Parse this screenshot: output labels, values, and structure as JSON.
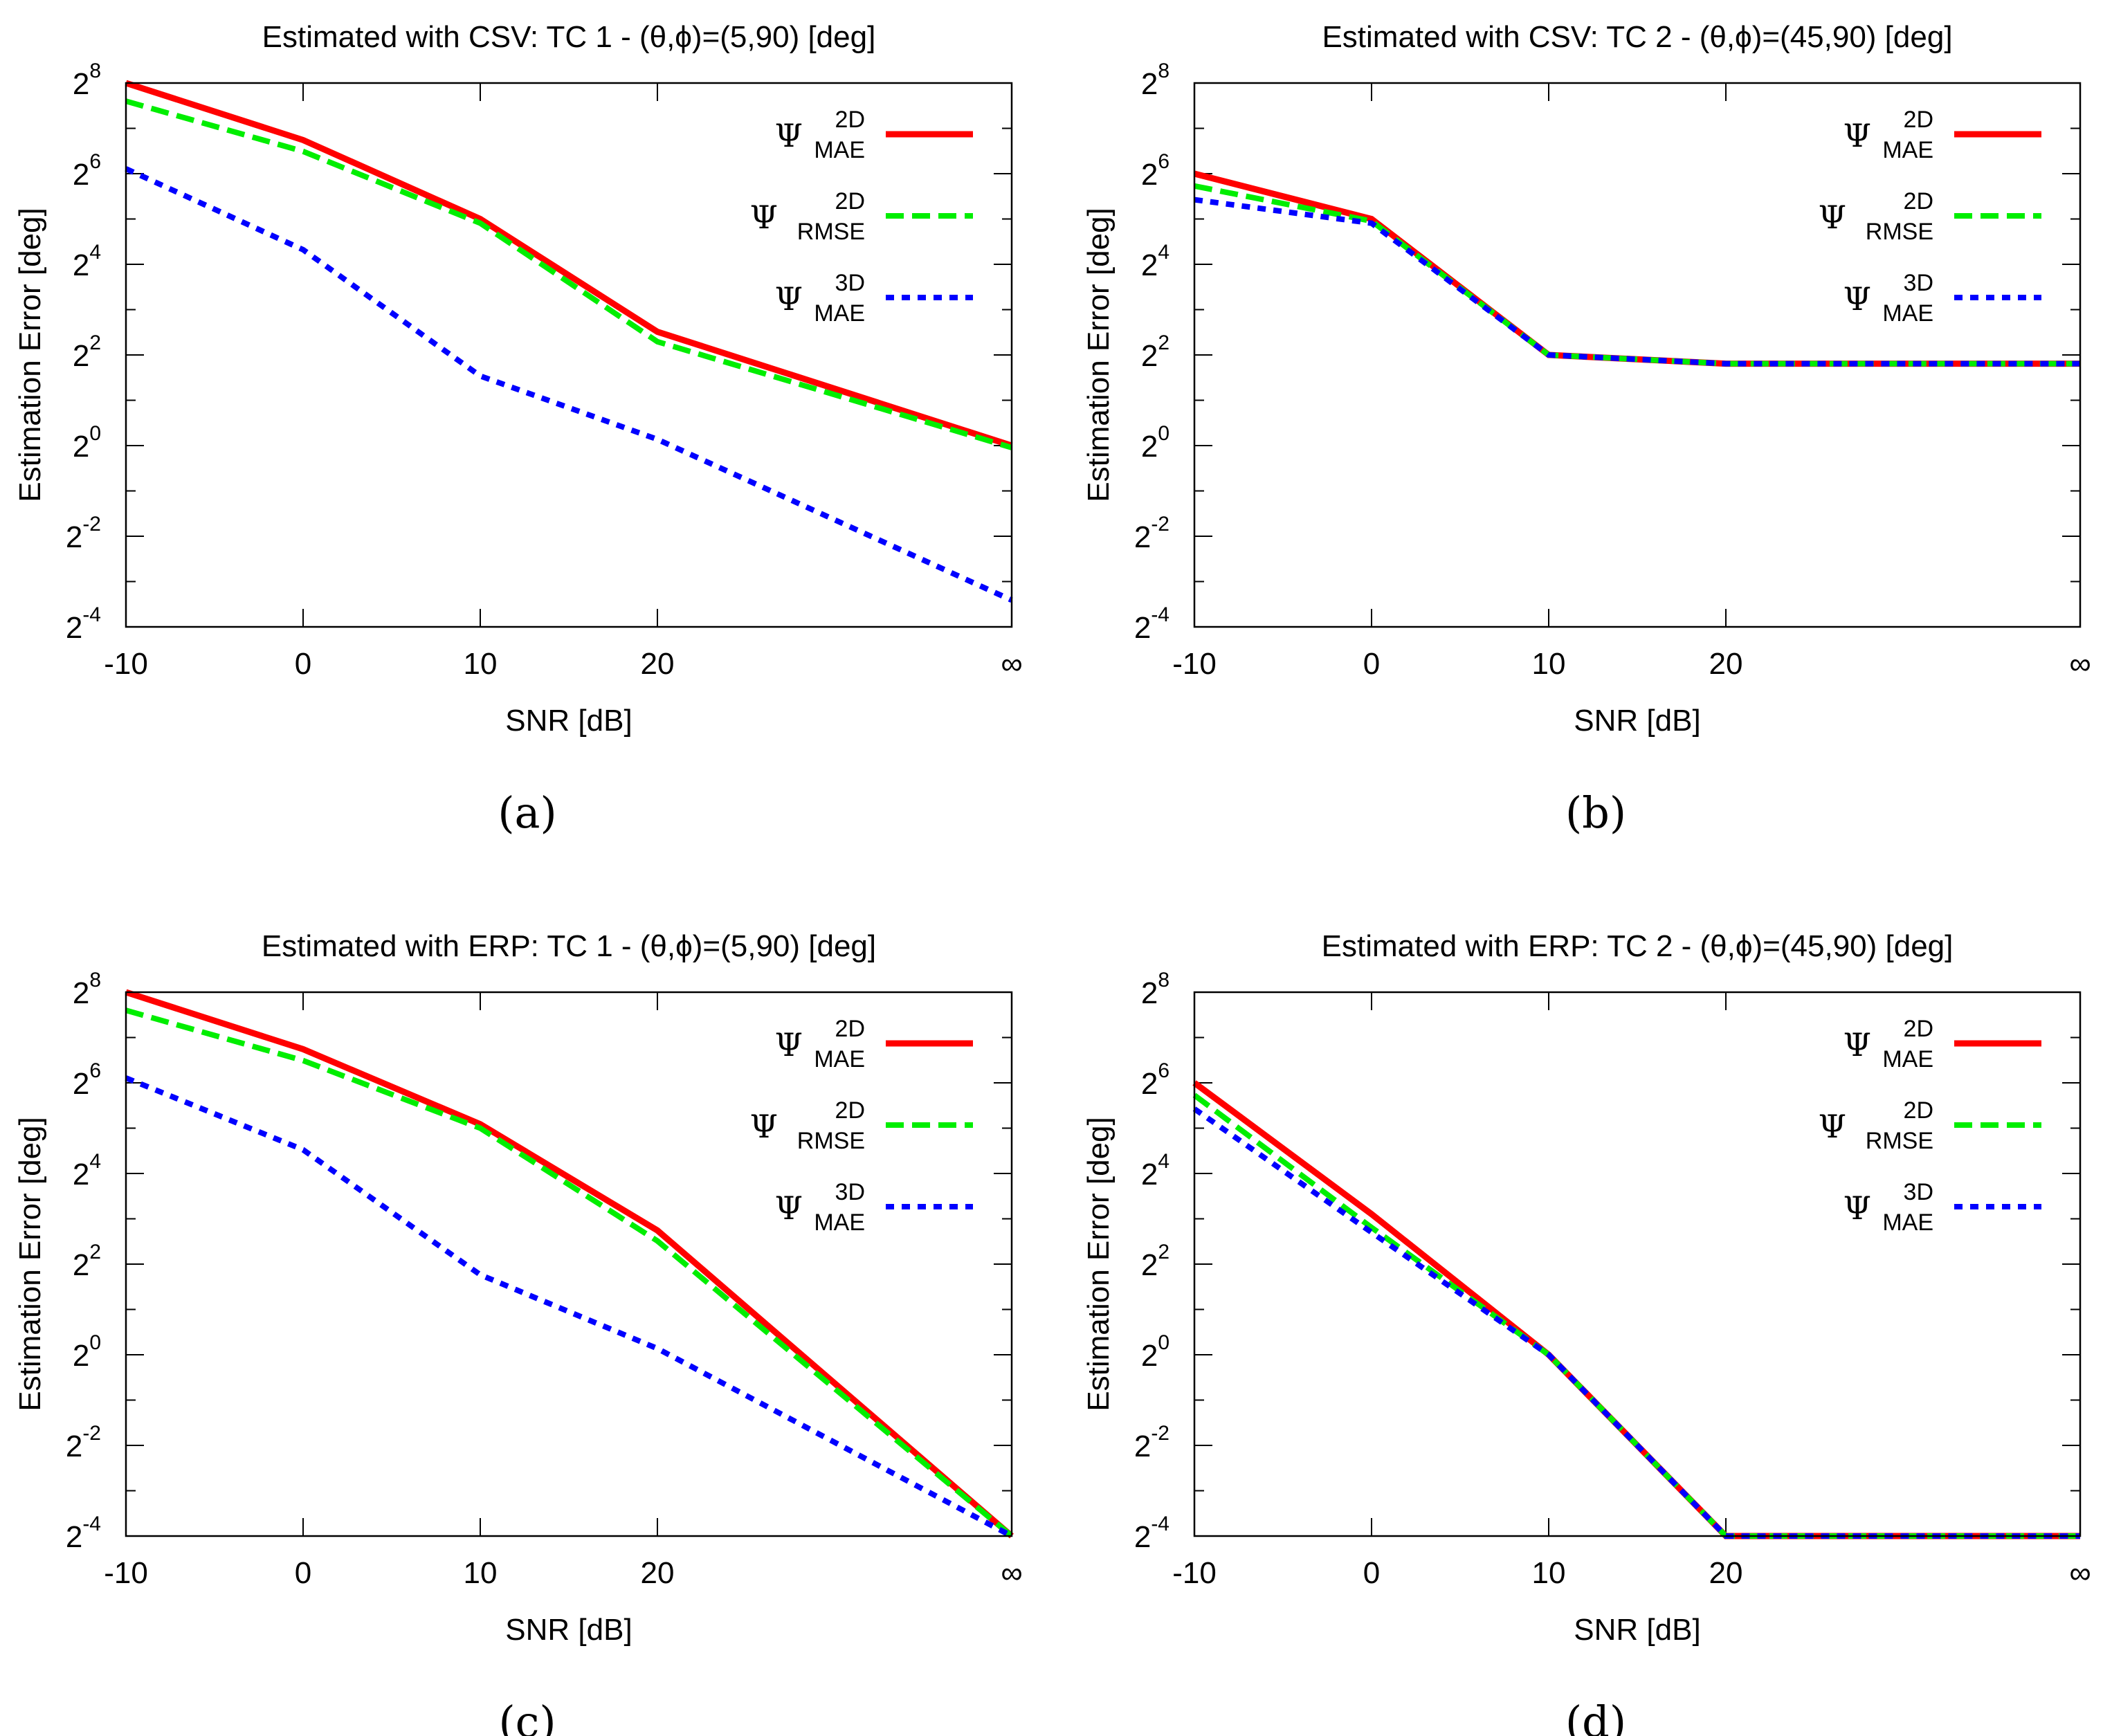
{
  "chart_data": [
    {
      "type": "line",
      "title": "Estimated with CSV: TC 1 - (θ,ϕ)=(5,90) [deg]",
      "panel_label": "(a)",
      "xlabel": "SNR [dB]",
      "ylabel": "Estimation Error [deg]",
      "x": [
        -10,
        0,
        10,
        20,
        "∞"
      ],
      "x_tick_labels": [
        "-10",
        "0",
        "10",
        "20",
        "∞"
      ],
      "y_scale": "log2",
      "ylim": [
        0.0625,
        256
      ],
      "y_tick_bases": [
        "2",
        "2",
        "2",
        "2",
        "2",
        "2",
        "2"
      ],
      "y_tick_exponents": [
        "8",
        "6",
        "4",
        "2",
        "0",
        "-2",
        "-4"
      ],
      "grid": false,
      "legend_position": "top-right",
      "series": [
        {
          "name_symbol": "Ψ",
          "name_sup": "2D",
          "name_sub": "MAE",
          "color": "#ff0000",
          "style": "solid",
          "values": [
            256,
            107,
            32,
            5.7,
            1.0
          ]
        },
        {
          "name_symbol": "Ψ",
          "name_sup": "2D",
          "name_sub": "RMSE",
          "color": "#00ee00",
          "style": "dashed",
          "values": [
            194,
            90,
            30,
            4.9,
            0.97
          ]
        },
        {
          "name_symbol": "Ψ",
          "name_sup": "3D",
          "name_sub": "MAE",
          "color": "#0000ff",
          "style": "dotted",
          "values": [
            69,
            20,
            2.9,
            1.1,
            0.094
          ]
        }
      ]
    },
    {
      "type": "line",
      "title": "Estimated with CSV: TC 2 - (θ,ϕ)=(45,90) [deg]",
      "panel_label": "(b)",
      "xlabel": "SNR [dB]",
      "ylabel": "Estimation Error [deg]",
      "x": [
        -10,
        0,
        10,
        20,
        "∞"
      ],
      "x_tick_labels": [
        "-10",
        "0",
        "10",
        "20",
        "∞"
      ],
      "y_scale": "log2",
      "ylim": [
        0.0625,
        256
      ],
      "y_tick_bases": [
        "2",
        "2",
        "2",
        "2",
        "2",
        "2",
        "2"
      ],
      "y_tick_exponents": [
        "8",
        "6",
        "4",
        "2",
        "0",
        "-2",
        "-4"
      ],
      "grid": false,
      "legend_position": "top-right",
      "series": [
        {
          "name_symbol": "Ψ",
          "name_sup": "2D",
          "name_sub": "MAE",
          "color": "#ff0000",
          "style": "solid",
          "values": [
            64,
            32,
            4.0,
            3.5,
            3.5
          ]
        },
        {
          "name_symbol": "Ψ",
          "name_sup": "2D",
          "name_sub": "RMSE",
          "color": "#00ee00",
          "style": "dashed",
          "values": [
            53,
            31,
            4.0,
            3.5,
            3.5
          ]
        },
        {
          "name_symbol": "Ψ",
          "name_sup": "3D",
          "name_sub": "MAE",
          "color": "#0000ff",
          "style": "dotted",
          "values": [
            43,
            30,
            4.0,
            3.5,
            3.5
          ]
        }
      ]
    },
    {
      "type": "line",
      "title": "Estimated with ERP: TC 1 - (θ,ϕ)=(5,90) [deg]",
      "panel_label": "(c)",
      "xlabel": "SNR [dB]",
      "ylabel": "Estimation Error [deg]",
      "x": [
        -10,
        0,
        10,
        20,
        "∞"
      ],
      "x_tick_labels": [
        "-10",
        "0",
        "10",
        "20",
        "∞"
      ],
      "y_scale": "log2",
      "ylim": [
        0.0625,
        256
      ],
      "y_tick_bases": [
        "2",
        "2",
        "2",
        "2",
        "2",
        "2",
        "2"
      ],
      "y_tick_exponents": [
        "8",
        "6",
        "4",
        "2",
        "0",
        "-2",
        "-4"
      ],
      "grid": false,
      "legend_position": "top-right",
      "series": [
        {
          "name_symbol": "Ψ",
          "name_sup": "2D",
          "name_sub": "MAE",
          "color": "#ff0000",
          "style": "solid",
          "values": [
            256,
            107,
            34,
            6.7,
            0.0625
          ]
        },
        {
          "name_symbol": "Ψ",
          "name_sup": "2D",
          "name_sub": "RMSE",
          "color": "#00ee00",
          "style": "dashed",
          "values": [
            194,
            90,
            32,
            5.7,
            0.0625
          ]
        },
        {
          "name_symbol": "Ψ",
          "name_sup": "3D",
          "name_sub": "MAE",
          "color": "#0000ff",
          "style": "dotted",
          "values": [
            69,
            23,
            3.4,
            1.1,
            0.0625
          ]
        }
      ]
    },
    {
      "type": "line",
      "title": "Estimated with ERP: TC 2 - (θ,ϕ)=(45,90) [deg]",
      "panel_label": "(d)",
      "xlabel": "SNR [dB]",
      "ylabel": "Estimation Error [deg]",
      "x": [
        -10,
        0,
        10,
        20,
        "∞"
      ],
      "x_tick_labels": [
        "-10",
        "0",
        "10",
        "20",
        "∞"
      ],
      "y_scale": "log2",
      "ylim": [
        0.0625,
        256
      ],
      "y_tick_bases": [
        "2",
        "2",
        "2",
        "2",
        "2",
        "2",
        "2"
      ],
      "y_tick_exponents": [
        "8",
        "6",
        "4",
        "2",
        "0",
        "-2",
        "-4"
      ],
      "grid": false,
      "legend_position": "top-right",
      "series": [
        {
          "name_symbol": "Ψ",
          "name_sup": "2D",
          "name_sub": "MAE",
          "color": "#ff0000",
          "style": "solid",
          "values": [
            64,
            8.6,
            1.0,
            0.0625,
            0.0625
          ]
        },
        {
          "name_symbol": "Ψ",
          "name_sup": "2D",
          "name_sub": "RMSE",
          "color": "#00ee00",
          "style": "dashed",
          "values": [
            53,
            7.0,
            1.0,
            0.0625,
            0.0625
          ]
        },
        {
          "name_symbol": "Ψ",
          "name_sup": "3D",
          "name_sub": "MAE",
          "color": "#0000ff",
          "style": "dotted",
          "values": [
            43,
            6.5,
            1.0,
            0.0625,
            0.0625
          ]
        }
      ]
    }
  ]
}
